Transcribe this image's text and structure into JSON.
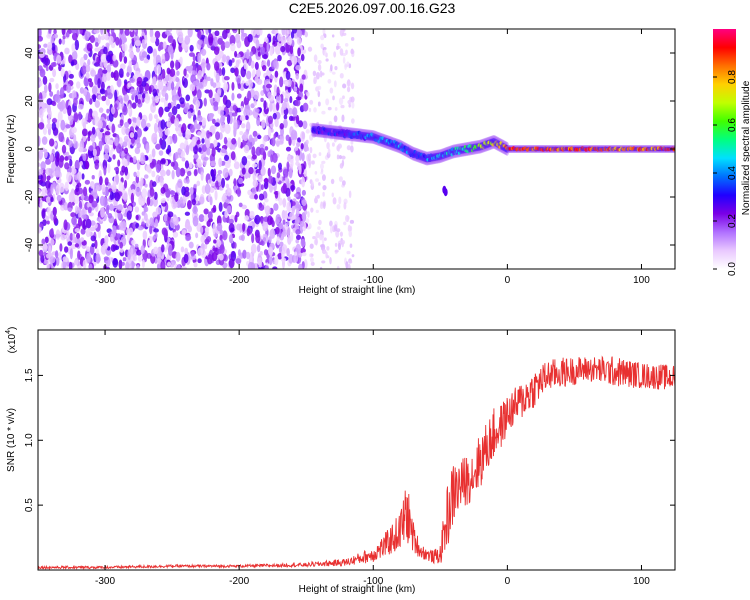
{
  "figure_title": "C2E5.2026.097.00.16.G23",
  "chart_data": [
    {
      "type": "heatmap",
      "title": "C2E5.2026.097.00.16.G23",
      "xlabel": "Height of straight line (km)",
      "ylabel": "Frequency (Hz)",
      "xlim": [
        -350,
        125
      ],
      "ylim": [
        -50,
        50
      ],
      "xticks": [
        -300,
        -200,
        -100,
        0,
        100
      ],
      "yticks": [
        -40,
        -20,
        0,
        20,
        40
      ],
      "colorbar": {
        "label": "Normalized spectral amplitude",
        "range": [
          0,
          1
        ],
        "ticks": [
          "0.0",
          "0.2",
          "0.4",
          "0.6",
          "0.8"
        ],
        "tick_values": [
          0,
          0.2,
          0.4,
          0.6,
          0.8
        ],
        "colormap": [
          "#ffffff",
          "#e9c8ff",
          "#b070ff",
          "#7a00e6",
          "#2000ff",
          "#0070ff",
          "#00e0ff",
          "#00ff80",
          "#40ff00",
          "#c0ff00",
          "#ffd000",
          "#ff7000",
          "#ff0000",
          "#ff0080"
        ]
      },
      "ridge": {
        "description_points_x": [
          -145,
          -130,
          -115,
          -100,
          -90,
          -80,
          -70,
          -60,
          -50,
          -40,
          -30,
          -20,
          -10,
          0,
          30,
          60,
          90,
          125
        ],
        "description_points_y": [
          8,
          7,
          6,
          5,
          3,
          1,
          -2,
          -4,
          -3,
          -1,
          0,
          1,
          3,
          0,
          0,
          0,
          0,
          0
        ],
        "amplitude": [
          0.35,
          0.35,
          0.4,
          0.45,
          0.45,
          0.5,
          0.45,
          0.45,
          0.5,
          0.55,
          0.6,
          0.75,
          0.8,
          0.95,
          0.95,
          0.95,
          0.9,
          0.95
        ]
      },
      "noise_region_x": [
        -350,
        -150
      ],
      "faint_region_x": [
        -150,
        -115
      ],
      "noise_amplitude": 0.22
    },
    {
      "type": "line",
      "xlabel": "Height of straight line (km)",
      "ylabel": "SNR (10 * v/v)",
      "y_multiplier": "(x10",
      "y_multiplier_exp": "4",
      "xlim": [
        -350,
        125
      ],
      "ylim": [
        0,
        1.85
      ],
      "xticks": [
        -300,
        -200,
        -100,
        0,
        100
      ],
      "yticks": [
        0.5,
        1.0,
        1.5
      ],
      "ytick_labels": [
        "0.5",
        "1.0",
        "1.5"
      ],
      "series": [
        {
          "name": "SNR",
          "color": "#e83030",
          "x": [
            -350,
            -300,
            -250,
            -200,
            -150,
            -120,
            -100,
            -90,
            -80,
            -75,
            -70,
            -65,
            -60,
            -55,
            -50,
            -45,
            -40,
            -35,
            -30,
            -25,
            -20,
            -15,
            -10,
            -5,
            0,
            10,
            20,
            30,
            40,
            60,
            80,
            100,
            125
          ],
          "y": [
            0.02,
            0.02,
            0.03,
            0.03,
            0.04,
            0.06,
            0.12,
            0.2,
            0.3,
            0.45,
            0.25,
            0.15,
            0.12,
            0.1,
            0.12,
            0.4,
            0.6,
            0.65,
            0.7,
            0.75,
            0.85,
            0.95,
            1.05,
            1.1,
            1.2,
            1.3,
            1.4,
            1.5,
            1.52,
            1.55,
            1.53,
            1.5,
            1.48
          ],
          "noise_amp": [
            0.01,
            0.01,
            0.01,
            0.01,
            0.015,
            0.03,
            0.06,
            0.1,
            0.15,
            0.25,
            0.12,
            0.06,
            0.05,
            0.05,
            0.08,
            0.25,
            0.25,
            0.2,
            0.2,
            0.2,
            0.22,
            0.2,
            0.2,
            0.18,
            0.15,
            0.15,
            0.15,
            0.12,
            0.12,
            0.1,
            0.12,
            0.1,
            0.1
          ]
        }
      ]
    }
  ]
}
